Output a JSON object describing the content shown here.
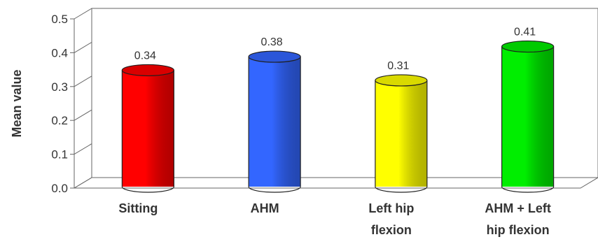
{
  "chart_data": {
    "type": "bar",
    "style": "3d-cylinder",
    "categories": [
      [
        "Sitting"
      ],
      [
        "AHM"
      ],
      [
        "Left hip",
        "flexion"
      ],
      [
        "AHM + Left",
        "hip flexion"
      ]
    ],
    "values": [
      0.34,
      0.38,
      0.31,
      0.41
    ],
    "data_labels": [
      "0.34",
      "0.38",
      "0.31",
      "0.41"
    ],
    "colors": [
      "#ff0000",
      "#3366ff",
      "#ffff00",
      "#00ee00"
    ],
    "ylabel": "Mean value",
    "xlabel": "",
    "title": "",
    "ylim": [
      0,
      0.5
    ],
    "yticks": [
      "0.0",
      "0.1",
      "0.2",
      "0.3",
      "0.4",
      "0.5"
    ],
    "grid": false,
    "legend": "none"
  }
}
